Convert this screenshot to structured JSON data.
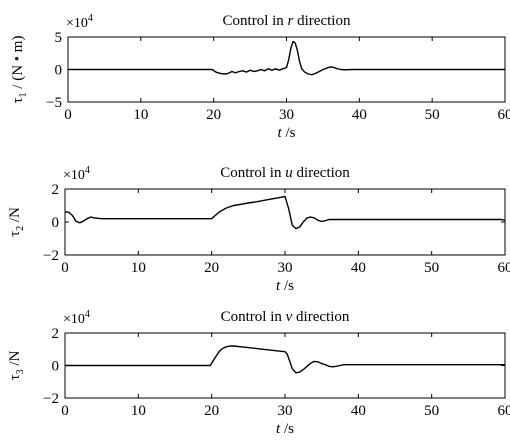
{
  "chart_data": [
    {
      "type": "line",
      "title_prefix": "Control in ",
      "title_var": "r",
      "title_suffix": " direction",
      "scale_base": "×10",
      "scale_exp": "4",
      "ylabel_main": "τ",
      "ylabel_sub": "1",
      "ylabel_rest": " / (N • m)",
      "xlabel_var": "t",
      "xlabel_unit": " /s",
      "xlim": [
        0,
        60
      ],
      "ylim": [
        -5,
        5
      ],
      "xticks": [
        0,
        10,
        20,
        30,
        40,
        50,
        60
      ],
      "yticks": [
        -5,
        0,
        5
      ],
      "series": [
        {
          "x": [
            0,
            8,
            19.8,
            20.3,
            20.9,
            21.5,
            22,
            22.5,
            23,
            23.5,
            24,
            24.5,
            25,
            25.5,
            26,
            26.5,
            27,
            27.5,
            28,
            28.5,
            29,
            29.5,
            30,
            30.3,
            30.6,
            30.9,
            31.2,
            31.5,
            31.8,
            32.1,
            32.5,
            33,
            33.5,
            34,
            34.5,
            35,
            35.5,
            36,
            36.5,
            37,
            37.5,
            38,
            39,
            40,
            50,
            60
          ],
          "y": [
            0,
            0,
            0,
            -0.4,
            -0.6,
            -0.7,
            -0.6,
            -0.3,
            -0.5,
            -0.3,
            -0.2,
            -0.4,
            -0.1,
            -0.3,
            -0.2,
            0,
            -0.2,
            0.1,
            -0.1,
            0.1,
            -0.1,
            0.1,
            0.3,
            1.5,
            3.3,
            4.3,
            4.1,
            2.9,
            1.2,
            0.1,
            -0.4,
            -0.7,
            -0.8,
            -0.6,
            -0.3,
            0,
            0.2,
            0.4,
            0.3,
            0.1,
            0,
            -0.05,
            0,
            0,
            0,
            0
          ]
        }
      ]
    },
    {
      "type": "line",
      "title_prefix": "Control in ",
      "title_var": "u",
      "title_suffix": " direction",
      "scale_base": "×10",
      "scale_exp": "4",
      "ylabel_main": "τ",
      "ylabel_sub": "2",
      "ylabel_rest": " /N",
      "xlabel_var": "t",
      "xlabel_unit": " /s",
      "xlim": [
        0,
        60
      ],
      "ylim": [
        -2,
        2
      ],
      "xticks": [
        0,
        10,
        20,
        30,
        40,
        50,
        60
      ],
      "yticks": [
        -2,
        0,
        2
      ],
      "series": [
        {
          "x": [
            0,
            0.5,
            1,
            1.5,
            2,
            2.5,
            3,
            3.5,
            4,
            5,
            20,
            21,
            22,
            23,
            24,
            25,
            26,
            27,
            28,
            29,
            30,
            30.5,
            31,
            31.5,
            32,
            32.5,
            33,
            33.5,
            34,
            34.5,
            35,
            35.5,
            36,
            37,
            40,
            50,
            59.5,
            60
          ],
          "y": [
            0.6,
            0.6,
            0.4,
            0.05,
            -0.05,
            0.05,
            0.2,
            0.3,
            0.25,
            0.2,
            0.2,
            0.6,
            0.85,
            1,
            1.07,
            1.15,
            1.22,
            1.3,
            1.38,
            1.46,
            1.55,
            0.8,
            -0.2,
            -0.4,
            -0.3,
            0,
            0.25,
            0.3,
            0.25,
            0.1,
            0.03,
            0.08,
            0.15,
            0.15,
            0.15,
            0.15,
            0.15,
            0.1
          ]
        }
      ]
    },
    {
      "type": "line",
      "title_prefix": "Control in ",
      "title_var": "v",
      "title_suffix": " direction",
      "scale_base": "×10",
      "scale_exp": "4",
      "ylabel_main": "τ",
      "ylabel_sub": "3",
      "ylabel_rest": " /N",
      "xlabel_var": "t",
      "xlabel_unit": " /s",
      "xlim": [
        0,
        60
      ],
      "ylim": [
        -2,
        2
      ],
      "xticks": [
        0,
        10,
        20,
        30,
        40,
        50,
        60
      ],
      "yticks": [
        -2,
        0,
        2
      ],
      "series": [
        {
          "x": [
            0,
            19.8,
            20.5,
            21,
            21.5,
            22,
            22.5,
            23,
            24,
            25,
            26,
            27,
            28,
            29,
            30,
            30.3,
            30.7,
            31,
            31.5,
            32,
            32.5,
            33,
            33.5,
            34,
            34.5,
            35,
            35.5,
            36,
            36.5,
            37,
            37.5,
            38,
            40,
            50,
            60
          ],
          "y": [
            0,
            0,
            0.5,
            0.85,
            1.05,
            1.15,
            1.2,
            1.2,
            1.15,
            1.1,
            1.05,
            1,
            0.95,
            0.9,
            0.85,
            0.7,
            0.2,
            -0.2,
            -0.45,
            -0.4,
            -0.25,
            -0.05,
            0.15,
            0.25,
            0.22,
            0.12,
            0.05,
            -0.05,
            -0.08,
            -0.05,
            0,
            0.05,
            0.05,
            0.05,
            0.05
          ]
        }
      ]
    }
  ]
}
